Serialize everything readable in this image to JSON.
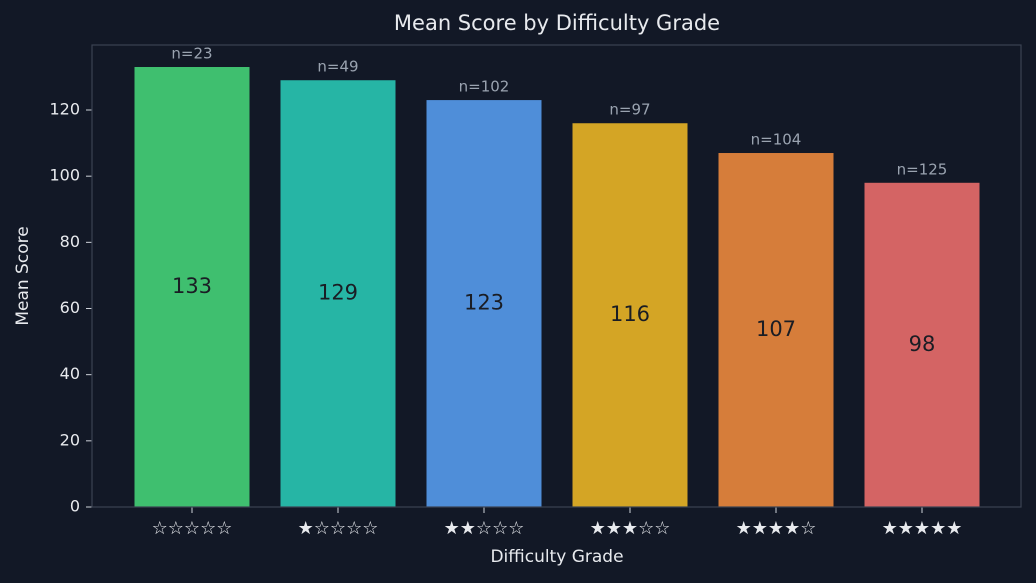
{
  "chart_data": {
    "type": "bar",
    "title": "Mean Score by Difficulty Grade",
    "x_label": "Difficulty Grade",
    "y_label": "Mean Score",
    "categories": [
      "☆☆☆☆☆",
      "★☆☆☆☆",
      "★★☆☆☆",
      "★★★☆☆",
      "★★★★☆",
      "★★★★★"
    ],
    "values": [
      133,
      129,
      123,
      116,
      107,
      98
    ],
    "sample_sizes": [
      "n=23",
      "n=49",
      "n=102",
      "n=97",
      "n=104",
      "n=125"
    ],
    "colors": [
      "#3fbf6f",
      "#26b5a5",
      "#4f8ed9",
      "#d4a525",
      "#d67d3a",
      "#d46464"
    ],
    "ylim": [
      0,
      139.65
    ],
    "yticks": [
      0,
      20,
      40,
      60,
      80,
      100,
      120
    ],
    "grid": false
  }
}
